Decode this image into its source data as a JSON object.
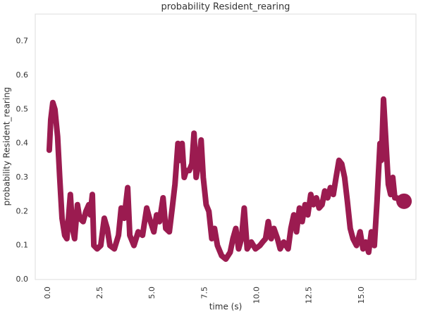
{
  "chart_data": {
    "type": "line",
    "title": "probability Resident_rearing",
    "x_label": "time (s)",
    "y_label": "probability Resident_rearing",
    "color": "#9b1b50",
    "x": [
      0.07,
      0.14,
      0.24,
      0.34,
      0.47,
      0.57,
      0.68,
      0.81,
      0.91,
      1.08,
      1.18,
      1.28,
      1.42,
      1.52,
      1.69,
      1.82,
      1.96,
      2.03,
      2.13,
      2.2,
      2.36,
      2.53,
      2.7,
      2.84,
      2.97,
      3.18,
      3.38,
      3.51,
      3.65,
      3.82,
      3.92,
      4.12,
      4.32,
      4.53,
      4.73,
      4.86,
      5.07,
      5.2,
      5.34,
      5.51,
      5.64,
      5.81,
      5.95,
      6.08,
      6.22,
      6.32,
      6.42,
      6.52,
      6.62,
      6.76,
      6.89,
      6.99,
      7.09,
      7.23,
      7.33,
      7.43,
      7.57,
      7.7,
      7.84,
      7.97,
      8.11,
      8.31,
      8.51,
      8.72,
      8.85,
      8.99,
      9.12,
      9.26,
      9.39,
      9.53,
      9.73,
      9.93,
      10.14,
      10.27,
      10.41,
      10.54,
      10.68,
      10.81,
      10.98,
      11.11,
      11.28,
      11.49,
      11.62,
      11.76,
      11.89,
      12.03,
      12.16,
      12.3,
      12.43,
      12.57,
      12.7,
      12.84,
      12.97,
      13.11,
      13.24,
      13.38,
      13.51,
      13.65,
      13.78,
      13.92,
      14.05,
      14.19,
      14.32,
      14.46,
      14.59,
      14.76,
      14.93,
      15.07,
      15.2,
      15.34,
      15.47,
      15.61,
      15.74,
      15.88,
      15.95,
      16.05,
      16.15,
      16.28,
      16.39,
      16.49,
      16.59,
      16.69,
      16.82,
      17.03
    ],
    "values": [
      0.38,
      0.47,
      0.52,
      0.5,
      0.42,
      0.3,
      0.18,
      0.13,
      0.12,
      0.25,
      0.15,
      0.12,
      0.22,
      0.18,
      0.17,
      0.2,
      0.22,
      0.19,
      0.25,
      0.1,
      0.09,
      0.1,
      0.18,
      0.15,
      0.1,
      0.09,
      0.13,
      0.21,
      0.18,
      0.27,
      0.13,
      0.1,
      0.14,
      0.13,
      0.21,
      0.18,
      0.14,
      0.19,
      0.17,
      0.24,
      0.15,
      0.14,
      0.21,
      0.28,
      0.4,
      0.35,
      0.4,
      0.3,
      0.32,
      0.32,
      0.34,
      0.43,
      0.3,
      0.35,
      0.41,
      0.3,
      0.22,
      0.2,
      0.12,
      0.15,
      0.1,
      0.07,
      0.06,
      0.08,
      0.12,
      0.15,
      0.09,
      0.12,
      0.21,
      0.09,
      0.11,
      0.09,
      0.1,
      0.11,
      0.12,
      0.17,
      0.12,
      0.15,
      0.12,
      0.09,
      0.11,
      0.09,
      0.15,
      0.19,
      0.14,
      0.21,
      0.17,
      0.22,
      0.19,
      0.25,
      0.22,
      0.24,
      0.21,
      0.22,
      0.26,
      0.24,
      0.27,
      0.25,
      0.3,
      0.35,
      0.34,
      0.3,
      0.23,
      0.15,
      0.12,
      0.1,
      0.14,
      0.09,
      0.11,
      0.08,
      0.14,
      0.1,
      0.23,
      0.4,
      0.35,
      0.53,
      0.42,
      0.28,
      0.25,
      0.3,
      0.24,
      0.24,
      0.23,
      0.23
    ],
    "xlim": [
      -0.6,
      17.6
    ],
    "ylim": [
      0,
      0.78
    ],
    "xticks": [
      {
        "value": 0,
        "label": "0.0"
      },
      2.5,
      {
        "value": 5,
        "label": "5.0"
      },
      7.5,
      {
        "value": 10,
        "label": "10.0"
      },
      12.5,
      {
        "value": 15,
        "label": "15.0"
      }
    ],
    "yticks": [
      {
        "value": 0,
        "label": "0.0"
      },
      0.1,
      0.2,
      0.3,
      0.4,
      0.5,
      0.6,
      0.7
    ],
    "grid": false
  }
}
